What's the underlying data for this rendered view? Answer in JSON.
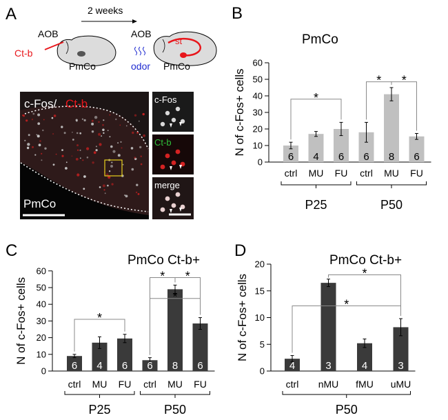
{
  "panel_letters": {
    "a": "A",
    "b": "B",
    "c": "C",
    "d": "D"
  },
  "schematic": {
    "timeline": "2 weeks",
    "aob_left": "AOB",
    "ctb": "Ct-b",
    "pmco_left": "PmCo",
    "aob_right": "AOB",
    "st": "st",
    "odor": "odor",
    "pmco_right": "PmCo"
  },
  "micrograph": {
    "main_label_cfos": "c-Fos/",
    "main_label_ctb": "Ct-b",
    "region_label": "PmCo",
    "inset_cfos": "c-Fos",
    "inset_ctb": "Ct-b",
    "inset_merge": "merge"
  },
  "colors": {
    "bar_gray": "#c0c0c0",
    "bar_dark": "#3a3a3a",
    "red": "#e8161b",
    "green": "#2fbf3a",
    "blue": "#1f2bd0",
    "yellow": "#e8d21d"
  },
  "chart_data": [
    {
      "id": "B",
      "type": "bar",
      "title": "PmCo",
      "ylabel": "N of c-Fos+ cells",
      "ylim": [
        0,
        60
      ],
      "yticks": [
        0,
        10,
        20,
        30,
        40,
        50,
        60
      ],
      "categories": [
        "ctrl",
        "MU",
        "FU",
        "ctrl",
        "MU",
        "FU"
      ],
      "values": [
        10,
        17,
        20,
        18,
        41,
        15.5
      ],
      "errors": [
        2,
        1.5,
        4,
        6,
        4,
        1.8
      ],
      "n_labels": [
        "6",
        "4",
        "6",
        "6",
        "8",
        "6"
      ],
      "groups": [
        {
          "label": "P25",
          "from": 0,
          "to": 2
        },
        {
          "label": "P50",
          "from": 3,
          "to": 5
        }
      ],
      "significance": [
        {
          "from": 0,
          "to": 2,
          "y": 38,
          "label": "*"
        },
        {
          "from": 3,
          "to": 4,
          "y": 48.5,
          "label": "*"
        },
        {
          "from": 4,
          "to": 5,
          "y": 48.5,
          "label": "*"
        }
      ]
    },
    {
      "id": "C",
      "type": "bar",
      "title": "PmCo Ct-b+",
      "ylabel": "N of c-Fos+ cells",
      "ylim": [
        0,
        60
      ],
      "yticks": [
        0,
        10,
        20,
        30,
        40,
        50,
        60
      ],
      "categories": [
        "ctrl",
        "MU",
        "FU",
        "ctrl",
        "MU",
        "FU"
      ],
      "values": [
        9,
        17,
        19.5,
        6.5,
        49,
        28.5
      ],
      "errors": [
        1,
        3.5,
        2.5,
        1.5,
        2.5,
        3.5
      ],
      "n_labels": [
        "6",
        "4",
        "6",
        "6",
        "8",
        "6"
      ],
      "groups": [
        {
          "label": "P25",
          "from": 0,
          "to": 2
        },
        {
          "label": "P50",
          "from": 3,
          "to": 5
        }
      ],
      "significance": [
        {
          "from": 0,
          "to": 2,
          "y": 31,
          "label": "*"
        },
        {
          "from": 3,
          "to": 4,
          "y": 56,
          "label": "*"
        },
        {
          "from": 4,
          "to": 5,
          "y": 56,
          "label": "*"
        },
        {
          "from": 3,
          "to": 5,
          "y": 43.5,
          "label": "*"
        }
      ]
    },
    {
      "id": "D",
      "type": "bar",
      "title": "PmCo Ct-b+",
      "ylabel": "N of c-Fos+ cells",
      "ylim": [
        0,
        20
      ],
      "yticks": [
        0,
        5,
        10,
        15,
        20
      ],
      "categories": [
        "ctrl",
        "nMU",
        "fMU",
        "uMU"
      ],
      "values": [
        2.3,
        16.5,
        5.2,
        8.2
      ],
      "errors": [
        0.6,
        0.7,
        0.8,
        1.6
      ],
      "n_labels": [
        "4",
        "3",
        "4",
        "3"
      ],
      "groups": [
        {
          "label": "P50",
          "from": 0,
          "to": 3
        }
      ],
      "significance": [
        {
          "from": 1,
          "to": 3,
          "y": 18,
          "label": "*"
        },
        {
          "from": 0,
          "to": 3,
          "y": 12.2,
          "label": "*"
        }
      ]
    }
  ]
}
